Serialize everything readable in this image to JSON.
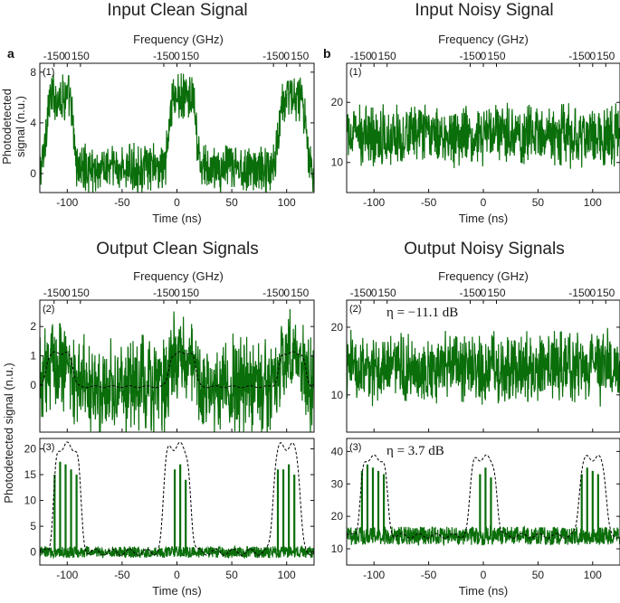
{
  "titles": {
    "top_left": "Input Clean Signal",
    "top_right": "Input Noisy Signal",
    "bottom_left": "Output Clean Signals",
    "bottom_right": "Output Noisy Signals"
  },
  "panel_letters": {
    "a": "a",
    "b": "b"
  },
  "freq_axis": {
    "label": "Frequency (GHz)",
    "ticks": [
      "-150",
      "0",
      "150"
    ]
  },
  "time_axis": {
    "label": "Time (ns)",
    "ticks": [
      "-100",
      "-50",
      "0",
      "50",
      "100"
    ]
  },
  "ylabels": {
    "top": "Photodetected\nsignal (n.u.)",
    "bottom": "Photodetected signal (n.u.)"
  },
  "colors": {
    "signal": "#0a6e0a",
    "envelope": "#000000"
  },
  "chart_data": [
    {
      "id": "a1",
      "type": "line",
      "sublabel": "(1)",
      "xlabel": "Time (ns)",
      "xlim": [
        -125,
        125
      ],
      "ylim": [
        -1.5,
        8.7
      ],
      "yticks": [
        0,
        4,
        8
      ],
      "series": [
        {
          "pulse_centers": [
            -107,
            5,
            105
          ],
          "pulse_width": 25,
          "on_level": 6.1,
          "off_level": 0.4,
          "noise_amplitude": 2.6
        }
      ]
    },
    {
      "id": "b1",
      "type": "line",
      "sublabel": "(1)",
      "xlabel": "Time (ns)",
      "xlim": [
        -125,
        125
      ],
      "ylim": [
        5,
        26.5
      ],
      "yticks": [
        10,
        20
      ],
      "series": [
        {
          "mean_level": 14.5,
          "noise_amplitude": 7.5
        }
      ]
    },
    {
      "id": "a2",
      "type": "line",
      "sublabel": "(2)",
      "xlim": [
        -125,
        125
      ],
      "ylim": [
        -1.6,
        2.9
      ],
      "yticks": [
        0,
        1,
        2
      ],
      "series": [
        {
          "pulse_centers": [
            -107,
            5,
            105
          ],
          "pulse_width": 25,
          "on_level": 0.9,
          "off_level": -0.05,
          "noise_amplitude": 2.2
        },
        {
          "pulse_centers": [
            -107,
            5,
            105
          ],
          "pulse_width": 25,
          "on_level": 1.1,
          "off_level": -0.05,
          "style": "dashed"
        }
      ]
    },
    {
      "id": "b2",
      "type": "line",
      "sublabel": "(2)",
      "annotation": "η = −11.1 dB",
      "xlim": [
        -125,
        125
      ],
      "ylim": [
        4.5,
        24
      ],
      "yticks": [
        10,
        20
      ],
      "series": [
        {
          "mean_level": 14,
          "noise_amplitude": 8
        }
      ]
    },
    {
      "id": "a3",
      "type": "line",
      "sublabel": "(3)",
      "xlabel": "Time (ns)",
      "xlim": [
        -125,
        125
      ],
      "ylim": [
        -2.5,
        22
      ],
      "yticks": [
        0,
        5,
        10,
        15,
        20
      ],
      "series": [
        {
          "spike_times": [
            -111.5,
            -106.5,
            -101.5,
            -96.5,
            -91.5,
            -2,
            3,
            8,
            92,
            97,
            102,
            107
          ],
          "spike_heights": [
            15,
            17.5,
            17,
            16,
            15,
            16,
            17,
            14,
            16,
            16,
            17,
            15
          ],
          "noise_amplitude": 1.6
        },
        {
          "pulse_centers": [
            -100,
            0,
            100
          ],
          "pulse_width": 25,
          "on_level": 20.5,
          "off_level": 0,
          "style": "dashed"
        }
      ]
    },
    {
      "id": "b3",
      "type": "line",
      "sublabel": "(3)",
      "annotation": "η = 3.7 dB",
      "xlabel": "Time (ns)",
      "xlim": [
        -125,
        125
      ],
      "ylim": [
        5,
        44
      ],
      "yticks": [
        10,
        20,
        30,
        40
      ],
      "series": [
        {
          "spike_times": [
            -111,
            -106,
            -101,
            -96,
            -91,
            -3,
            2,
            7,
            90,
            95,
            100,
            105
          ],
          "spike_heights": [
            34,
            36,
            35,
            34,
            33,
            33,
            35,
            32,
            33,
            35,
            34,
            33
          ],
          "base_level": 14,
          "noise_amplitude": 4
        },
        {
          "pulse_centers": [
            -100,
            0,
            100
          ],
          "pulse_width": 25,
          "on_level": 38,
          "off_level": 14,
          "style": "dashed"
        }
      ]
    }
  ]
}
